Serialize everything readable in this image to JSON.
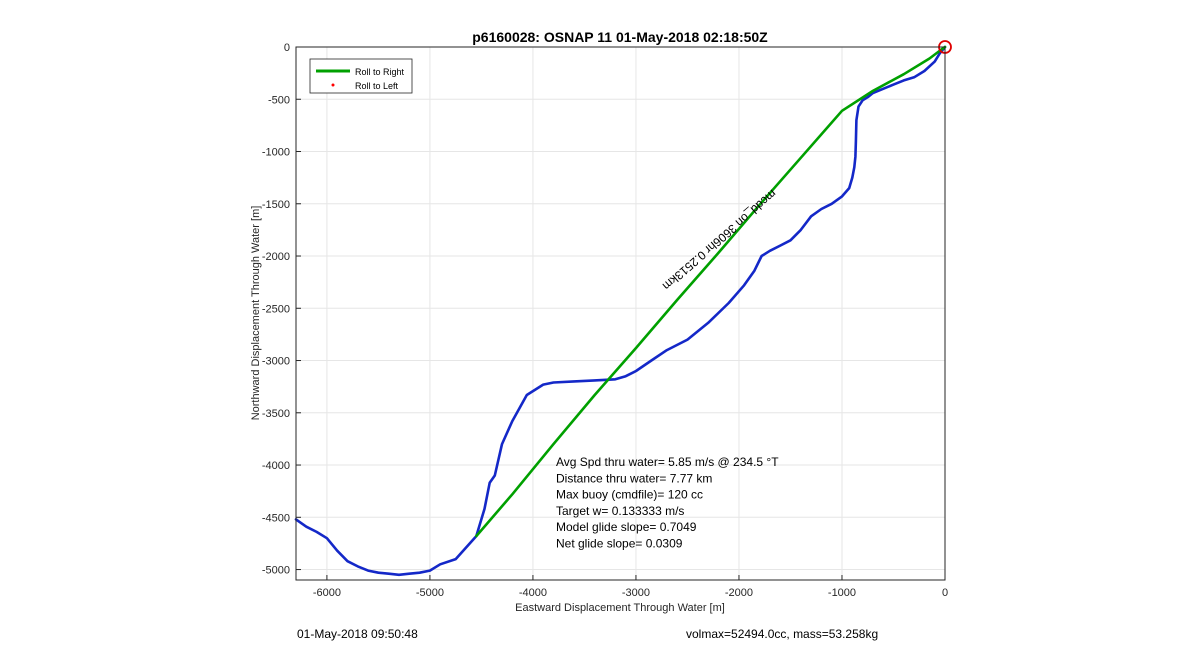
{
  "chart_data": {
    "type": "line",
    "title": "p6160028: OSNAP 11 01-May-2018 02:18:50Z",
    "xlabel": "Eastward Displacement Through Water [m]",
    "ylabel": "Northward Displacement Through Water [m]",
    "xlim": [
      -6300,
      0
    ],
    "ylim": [
      -5100,
      0
    ],
    "x_ticks": [
      -6000,
      -5000,
      -4000,
      -3000,
      -2000,
      -1000,
      0
    ],
    "y_ticks": [
      0,
      -500,
      -1000,
      -1500,
      -2000,
      -2500,
      -3000,
      -3500,
      -4000,
      -4500,
      -5000
    ],
    "grid": true,
    "legend_position": "top-left",
    "series": [
      {
        "name": "Roll to Right",
        "color": "#00a000",
        "x": [
          -4550,
          -4200,
          -3800,
          -3400,
          -3000,
          -2600,
          -2200,
          -1800,
          -1400,
          -1000,
          -700,
          -400,
          -150,
          -30,
          0
        ],
        "y": [
          -4680,
          -4280,
          -3800,
          -3330,
          -2880,
          -2420,
          -1970,
          -1510,
          -1060,
          -610,
          -420,
          -260,
          -110,
          -20,
          0
        ]
      },
      {
        "name": "Roll to Left",
        "color": "#ff0000",
        "marker": "dot",
        "x": [],
        "y": []
      },
      {
        "name": "",
        "color": "#1428c8",
        "x": [
          -6300,
          -6200,
          -6100,
          -6000,
          -5900,
          -5800,
          -5700,
          -5600,
          -5500,
          -5400,
          -5300,
          -5200,
          -5100,
          -5000,
          -4900,
          -4750,
          -4650,
          -4550,
          -4470,
          -4420,
          -4370,
          -4300,
          -4200,
          -4060,
          -3900,
          -3800,
          -3600,
          -3400,
          -3200,
          -3100,
          -3000,
          -2850,
          -2700,
          -2500,
          -2300,
          -2100,
          -1950,
          -1850,
          -1780,
          -1700,
          -1600,
          -1500,
          -1400,
          -1300,
          -1200,
          -1100,
          -1000,
          -930,
          -900,
          -880,
          -870,
          -865,
          -860,
          -840,
          -800,
          -750,
          -700,
          -600,
          -500,
          -400,
          -300,
          -200,
          -100,
          -50,
          0
        ],
        "y": [
          -4520,
          -4590,
          -4640,
          -4700,
          -4820,
          -4920,
          -4970,
          -5010,
          -5030,
          -5040,
          -5050,
          -5040,
          -5030,
          -5010,
          -4950,
          -4900,
          -4790,
          -4680,
          -4420,
          -4170,
          -4100,
          -3800,
          -3580,
          -3330,
          -3230,
          -3210,
          -3200,
          -3190,
          -3180,
          -3150,
          -3100,
          -3000,
          -2900,
          -2800,
          -2640,
          -2450,
          -2280,
          -2140,
          -2000,
          -1950,
          -1900,
          -1850,
          -1750,
          -1620,
          -1550,
          -1500,
          -1430,
          -1350,
          -1250,
          -1150,
          -1050,
          -900,
          -700,
          -570,
          -510,
          -480,
          -440,
          -400,
          -360,
          -320,
          -290,
          -230,
          -140,
          -60,
          0
        ]
      }
    ],
    "annotations": [
      "Avg Spd thru water=  5.85 m/s @ 234.5 °T",
      "Distance thru water=  7.77 km",
      "Max buoy (cmdfile)= 120 cc",
      "Target w= 0.133333 m/s",
      "Model glide slope= 0.7049",
      "Net glide slope= 0.0309"
    ],
    "rotated_label": "mcdd_on 3606hr 0.2513km",
    "end_marker": {
      "x": 0,
      "y": 0,
      "color": "#e00000"
    }
  },
  "footer": {
    "left": "01-May-2018 09:50:48",
    "right": "volmax=52494.0cc, mass=53.258kg"
  }
}
